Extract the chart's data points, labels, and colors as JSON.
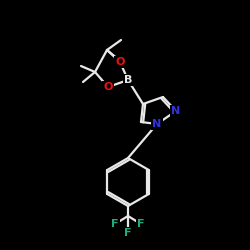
{
  "background_color": "#000000",
  "bond_color": "#e8e8e8",
  "atom_colors": {
    "B": "#e8e8e8",
    "O": "#ee1111",
    "N": "#3333dd",
    "F": "#22aa77",
    "C": "#e8e8e8"
  },
  "figsize": [
    2.5,
    2.5
  ],
  "dpi": 100,
  "lw": 1.6,
  "fs": 8.0
}
